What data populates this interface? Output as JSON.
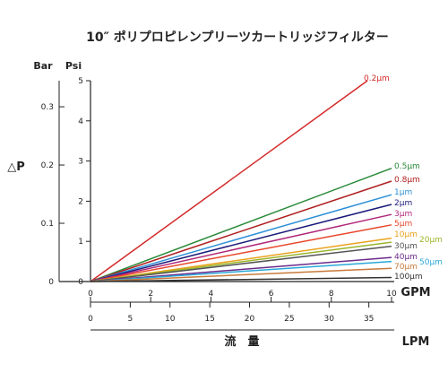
{
  "chart_data": {
    "type": "line",
    "title": "10″ ポリプロピレンプリーツカートリッジフィルター",
    "xlabel": "流　量",
    "ylabel": "△P",
    "x_units": [
      "GPM",
      "LPM"
    ],
    "y_units": [
      "Bar",
      "Psi"
    ],
    "xlim_gpm": [
      0,
      10
    ],
    "ylim_psi": [
      0,
      5
    ],
    "ylim_bar": [
      0,
      0.35
    ],
    "grid": false,
    "legend": "labels at line ends",
    "gpm_ticks": [
      "0",
      "2",
      "4",
      "6",
      "8",
      "10"
    ],
    "lpm_ticks": [
      "0",
      "5",
      "10",
      "15",
      "20",
      "25",
      "30",
      "35"
    ],
    "psi_ticks": [
      "0",
      "1",
      "2",
      "3",
      "4",
      "5"
    ],
    "bar_ticks": [
      "0",
      "0.1",
      "0.2",
      "0.3"
    ],
    "series": [
      {
        "name": "0.2μm",
        "color": "#d42a2a",
        "x": [
          0,
          9.2
        ],
        "y": [
          0,
          5.0
        ]
      },
      {
        "name": "0.5μm",
        "color": "#2a8a3a",
        "x": [
          0,
          10
        ],
        "y": [
          0,
          2.82
        ]
      },
      {
        "name": "0.8μm",
        "color": "#b02020",
        "x": [
          0,
          10
        ],
        "y": [
          0,
          2.5
        ]
      },
      {
        "name": "1μm",
        "color": "#2d8fd6",
        "x": [
          0,
          10
        ],
        "y": [
          0,
          2.16
        ]
      },
      {
        "name": "2μm",
        "color": "#1a1a7a",
        "x": [
          0,
          10
        ],
        "y": [
          0,
          1.92
        ]
      },
      {
        "name": "3μm",
        "color": "#b0287a",
        "x": [
          0,
          10
        ],
        "y": [
          0,
          1.67
        ]
      },
      {
        "name": "5μm",
        "color": "#e8462a",
        "x": [
          0,
          10
        ],
        "y": [
          0,
          1.41
        ]
      },
      {
        "name": "10μm",
        "color": "#e9a21c",
        "x": [
          0,
          10
        ],
        "y": [
          0,
          1.08
        ]
      },
      {
        "name": "20μm",
        "color": "#9ab52a",
        "x": [
          0,
          10
        ],
        "y": [
          0,
          0.98
        ]
      },
      {
        "name": "30μm",
        "color": "#555555",
        "x": [
          0,
          10
        ],
        "y": [
          0,
          0.88
        ]
      },
      {
        "name": "40μm",
        "color": "#6a2a8a",
        "x": [
          0,
          10
        ],
        "y": [
          0,
          0.6
        ]
      },
      {
        "name": "50μm",
        "color": "#2aa8d8",
        "x": [
          0,
          10
        ],
        "y": [
          0,
          0.5
        ]
      },
      {
        "name": "70μm",
        "color": "#c87a3a",
        "x": [
          0,
          10
        ],
        "y": [
          0,
          0.33
        ]
      },
      {
        "name": "100μm",
        "color": "#333333",
        "x": [
          0,
          10
        ],
        "y": [
          0,
          0.1
        ]
      }
    ]
  }
}
